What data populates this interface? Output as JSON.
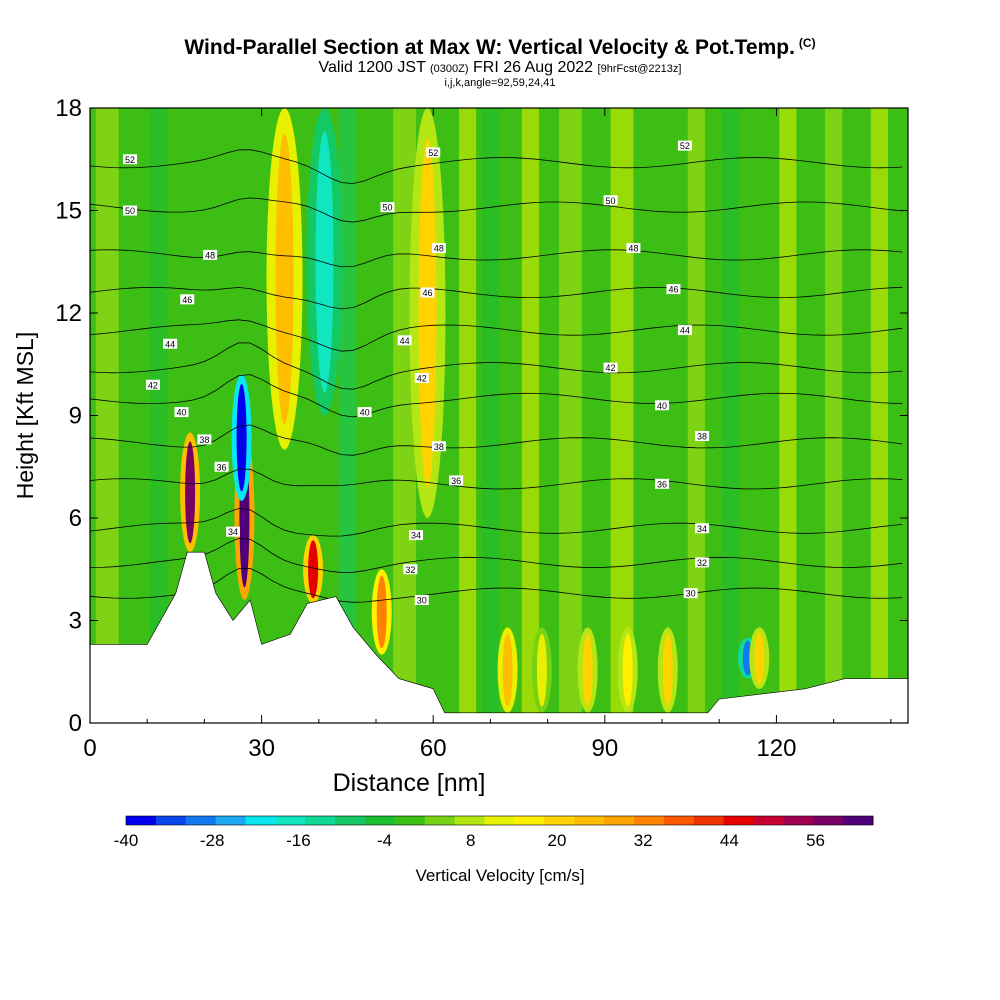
{
  "chart_data": {
    "type": "heatmap",
    "title": "Wind-Parallel Section at Max W: Vertical Velocity & Pot.Temp.",
    "title_mark": "(C)",
    "subtitle": {
      "prefix": "Valid 1200 JST",
      "utc": "(0300Z)",
      "date": "FRI 26 Aug 2022",
      "forecast": "[9hrFcst@2213z]"
    },
    "subtitle2": "i,j,k,angle=92,59,24,41",
    "xlabel": "Distance [nm]",
    "ylabel": "Height [Kft MSL]",
    "xlim": [
      0,
      143
    ],
    "ylim": [
      0,
      18
    ],
    "xticks": [
      0,
      30,
      60,
      90,
      120
    ],
    "yticks": [
      0,
      3,
      6,
      9,
      12,
      15,
      18
    ],
    "colorbar": {
      "label": "Vertical Velocity [cm/s]",
      "ticks": [
        -40,
        -28,
        -16,
        -4,
        8,
        20,
        32,
        44,
        56
      ],
      "range": [
        -40,
        64
      ],
      "colors": [
        "#0000ee",
        "#0a46ee",
        "#1478f0",
        "#1ea8f2",
        "#08e6f0",
        "#10e6c0",
        "#10d896",
        "#14c864",
        "#1cbe32",
        "#3cbe14",
        "#78d214",
        "#b4e614",
        "#e6f000",
        "#fff000",
        "#ffd200",
        "#ffbe00",
        "#ffa500",
        "#ff8200",
        "#ff5a00",
        "#f03200",
        "#e60000",
        "#c80032",
        "#a00050",
        "#780064",
        "#500078"
      ]
    },
    "terrain_kft": [
      [
        0,
        2.3
      ],
      [
        10,
        2.3
      ],
      [
        15,
        3.8
      ],
      [
        17,
        5.0
      ],
      [
        20,
        5.0
      ],
      [
        22,
        3.8
      ],
      [
        25,
        3.0
      ],
      [
        28,
        3.6
      ],
      [
        30,
        2.3
      ],
      [
        35,
        2.6
      ],
      [
        38,
        3.5
      ],
      [
        43,
        3.7
      ],
      [
        46,
        2.8
      ],
      [
        50,
        2.0
      ],
      [
        54,
        1.3
      ],
      [
        60,
        1.0
      ],
      [
        62,
        0.3
      ],
      [
        108,
        0.3
      ],
      [
        110,
        0.7
      ],
      [
        125,
        1.0
      ],
      [
        132,
        1.3
      ],
      [
        143,
        1.3
      ]
    ],
    "theta_contours": [
      {
        "level": "30",
        "base_kft": 3.8,
        "label_x": 58,
        "label_kft": 3.6
      },
      {
        "level": "30",
        "base_kft": 3.8,
        "label_x": 105,
        "label_kft": 3.8
      },
      {
        "level": "32",
        "base_kft": 4.7,
        "label_x": 56,
        "label_kft": 4.5
      },
      {
        "level": "32",
        "base_kft": 4.7,
        "label_x": 107,
        "label_kft": 4.7
      },
      {
        "level": "34",
        "base_kft": 5.7,
        "label_x": 25,
        "label_kft": 5.6
      },
      {
        "level": "34",
        "base_kft": 5.7,
        "label_x": 57,
        "label_kft": 5.5
      },
      {
        "level": "34",
        "base_kft": 5.7,
        "label_x": 107,
        "label_kft": 5.7
      },
      {
        "level": "36",
        "base_kft": 7.0,
        "label_x": 23,
        "label_kft": 7.5
      },
      {
        "level": "36",
        "base_kft": 7.0,
        "label_x": 64,
        "label_kft": 7.1
      },
      {
        "level": "36",
        "base_kft": 7.0,
        "label_x": 100,
        "label_kft": 7.0
      },
      {
        "level": "38",
        "base_kft": 8.2,
        "label_x": 20,
        "label_kft": 8.3
      },
      {
        "level": "38",
        "base_kft": 8.2,
        "label_x": 61,
        "label_kft": 8.1
      },
      {
        "level": "38",
        "base_kft": 8.2,
        "label_x": 107,
        "label_kft": 8.4
      },
      {
        "level": "40",
        "base_kft": 9.5,
        "label_x": 16,
        "label_kft": 9.1
      },
      {
        "level": "40",
        "base_kft": 9.5,
        "label_x": 48,
        "label_kft": 9.1
      },
      {
        "level": "40",
        "base_kft": 9.5,
        "label_x": 100,
        "label_kft": 9.3
      },
      {
        "level": "42",
        "base_kft": 10.4,
        "label_x": 11,
        "label_kft": 9.9
      },
      {
        "level": "42",
        "base_kft": 10.4,
        "label_x": 58,
        "label_kft": 10.1
      },
      {
        "level": "42",
        "base_kft": 10.4,
        "label_x": 91,
        "label_kft": 10.4
      },
      {
        "level": "44",
        "base_kft": 11.5,
        "label_x": 14,
        "label_kft": 11.1
      },
      {
        "level": "44",
        "base_kft": 11.5,
        "label_x": 55,
        "label_kft": 11.2
      },
      {
        "level": "44",
        "base_kft": 11.5,
        "label_x": 104,
        "label_kft": 11.5
      },
      {
        "level": "46",
        "base_kft": 12.6,
        "label_x": 17,
        "label_kft": 12.4
      },
      {
        "level": "46",
        "base_kft": 12.6,
        "label_x": 59,
        "label_kft": 12.6
      },
      {
        "level": "46",
        "base_kft": 12.6,
        "label_x": 102,
        "label_kft": 12.7
      },
      {
        "level": "48",
        "base_kft": 13.7,
        "label_x": 21,
        "label_kft": 13.7
      },
      {
        "level": "48",
        "base_kft": 13.7,
        "label_x": 61,
        "label_kft": 13.9
      },
      {
        "level": "48",
        "base_kft": 13.7,
        "label_x": 95,
        "label_kft": 13.9
      },
      {
        "level": "50",
        "base_kft": 15.1,
        "label_x": 7,
        "label_kft": 15.0
      },
      {
        "level": "50",
        "base_kft": 15.1,
        "label_x": 52,
        "label_kft": 15.1
      },
      {
        "level": "50",
        "base_kft": 15.1,
        "label_x": 91,
        "label_kft": 15.3
      },
      {
        "level": "52",
        "base_kft": 16.4,
        "label_x": 7,
        "label_kft": 16.5
      },
      {
        "level": "52",
        "base_kft": 16.4,
        "label_x": 60,
        "label_kft": 16.7
      },
      {
        "level": "52",
        "base_kft": 16.4,
        "label_x": 104,
        "label_kft": 16.9
      }
    ],
    "velocity_features": [
      {
        "x": 17.5,
        "value": 56,
        "bottom_kft": 5.0,
        "top_kft": 8.5
      },
      {
        "x": 27.0,
        "value": 60,
        "bottom_kft": 3.6,
        "top_kft": 8.5
      },
      {
        "x": 26.5,
        "value": -40,
        "bottom_kft": 6.5,
        "top_kft": 10.2
      },
      {
        "x": 39.0,
        "value": 44,
        "bottom_kft": 3.5,
        "top_kft": 5.5
      },
      {
        "x": 51.0,
        "value": 32,
        "bottom_kft": 2.0,
        "top_kft": 4.5
      },
      {
        "x": 34.0,
        "value": 24,
        "bottom_kft": 8.0,
        "top_kft": 18.0
      },
      {
        "x": 41.0,
        "value": -16,
        "bottom_kft": 9.0,
        "top_kft": 18.0
      },
      {
        "x": 59.0,
        "value": 20,
        "bottom_kft": 6.0,
        "top_kft": 18.0
      },
      {
        "x": 73.0,
        "value": 24,
        "bottom_kft": 0.3,
        "top_kft": 2.8
      },
      {
        "x": 79.0,
        "value": 12,
        "bottom_kft": 0.3,
        "top_kft": 2.8
      },
      {
        "x": 87.0,
        "value": 20,
        "bottom_kft": 0.3,
        "top_kft": 2.8
      },
      {
        "x": 94.0,
        "value": 16,
        "bottom_kft": 0.3,
        "top_kft": 2.8
      },
      {
        "x": 101.0,
        "value": 20,
        "bottom_kft": 0.3,
        "top_kft": 2.8
      },
      {
        "x": 115.0,
        "value": -28,
        "bottom_kft": 1.3,
        "top_kft": 2.5
      },
      {
        "x": 117.0,
        "value": 20,
        "bottom_kft": 1.0,
        "top_kft": 2.8
      }
    ]
  }
}
